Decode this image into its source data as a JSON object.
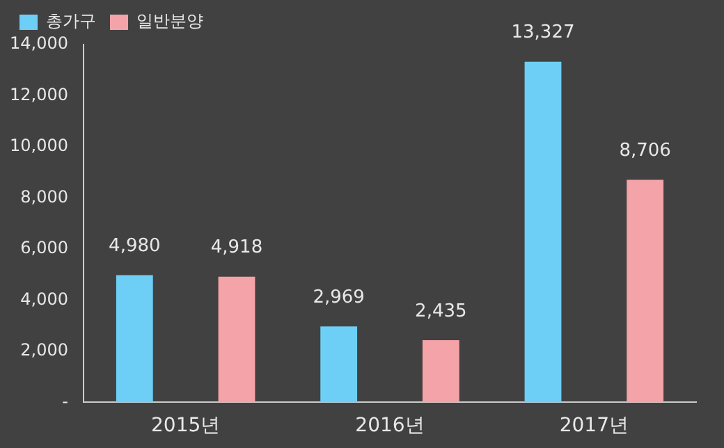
{
  "chart_data": {
    "type": "bar",
    "categories": [
      "2015년",
      "2016년",
      "2017년"
    ],
    "series": [
      {
        "name": "총가구",
        "color": "#6dcff6",
        "values": [
          4980,
          2969,
          13327
        ]
      },
      {
        "name": "일반분양",
        "color": "#f4a3a8",
        "values": [
          4918,
          2435,
          8706
        ]
      }
    ],
    "ylim": [
      0,
      14000
    ],
    "yticks": [
      {
        "value": 0,
        "label": "-"
      },
      {
        "value": 2000,
        "label": "2,000"
      },
      {
        "value": 4000,
        "label": "4,000"
      },
      {
        "value": 6000,
        "label": "6,000"
      },
      {
        "value": 8000,
        "label": "8,000"
      },
      {
        "value": 10000,
        "label": "10,000"
      },
      {
        "value": 12000,
        "label": "12,000"
      },
      {
        "value": 14000,
        "label": "14,000"
      }
    ],
    "value_labels": [
      [
        "4,980",
        "2,969",
        "13,327"
      ],
      [
        "4,918",
        "2,435",
        "8,706"
      ]
    ],
    "grid": false,
    "legend": "top left"
  }
}
